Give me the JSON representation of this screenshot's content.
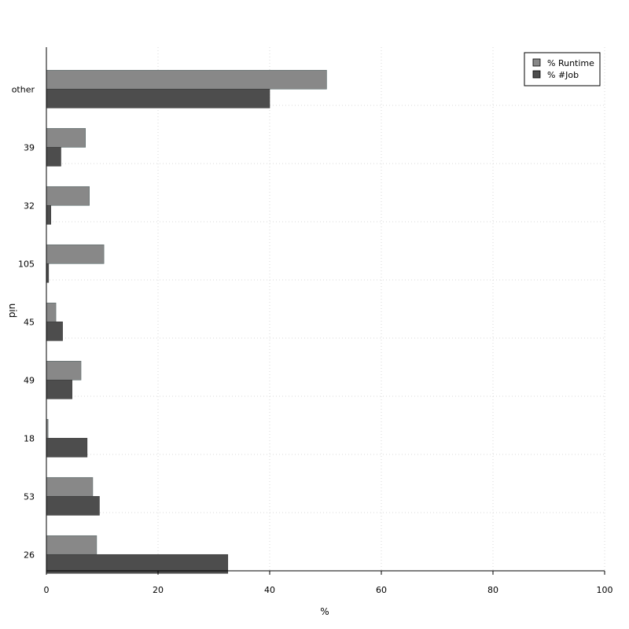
{
  "chart_data": {
    "type": "bar",
    "orientation": "horizontal",
    "title": "",
    "xlabel": "%",
    "ylabel": "uid",
    "xlim": [
      0,
      100
    ],
    "x_ticks": [
      "0",
      "20",
      "40",
      "60",
      "80",
      "100"
    ],
    "grid": true,
    "legend_position": "top-right",
    "categories": [
      "other",
      "39",
      "32",
      "105",
      "45",
      "49",
      "18",
      "53",
      "26"
    ],
    "series": [
      {
        "name": "% Runtime",
        "color": "#888888",
        "values": [
          50.2,
          7.0,
          7.7,
          10.3,
          1.7,
          6.2,
          0.3,
          8.3,
          9.0
        ]
      },
      {
        "name": "% #Job",
        "color": "#4d4d4d",
        "values": [
          40.0,
          2.6,
          0.8,
          0.4,
          2.9,
          4.6,
          7.3,
          9.5,
          32.5
        ]
      }
    ]
  }
}
